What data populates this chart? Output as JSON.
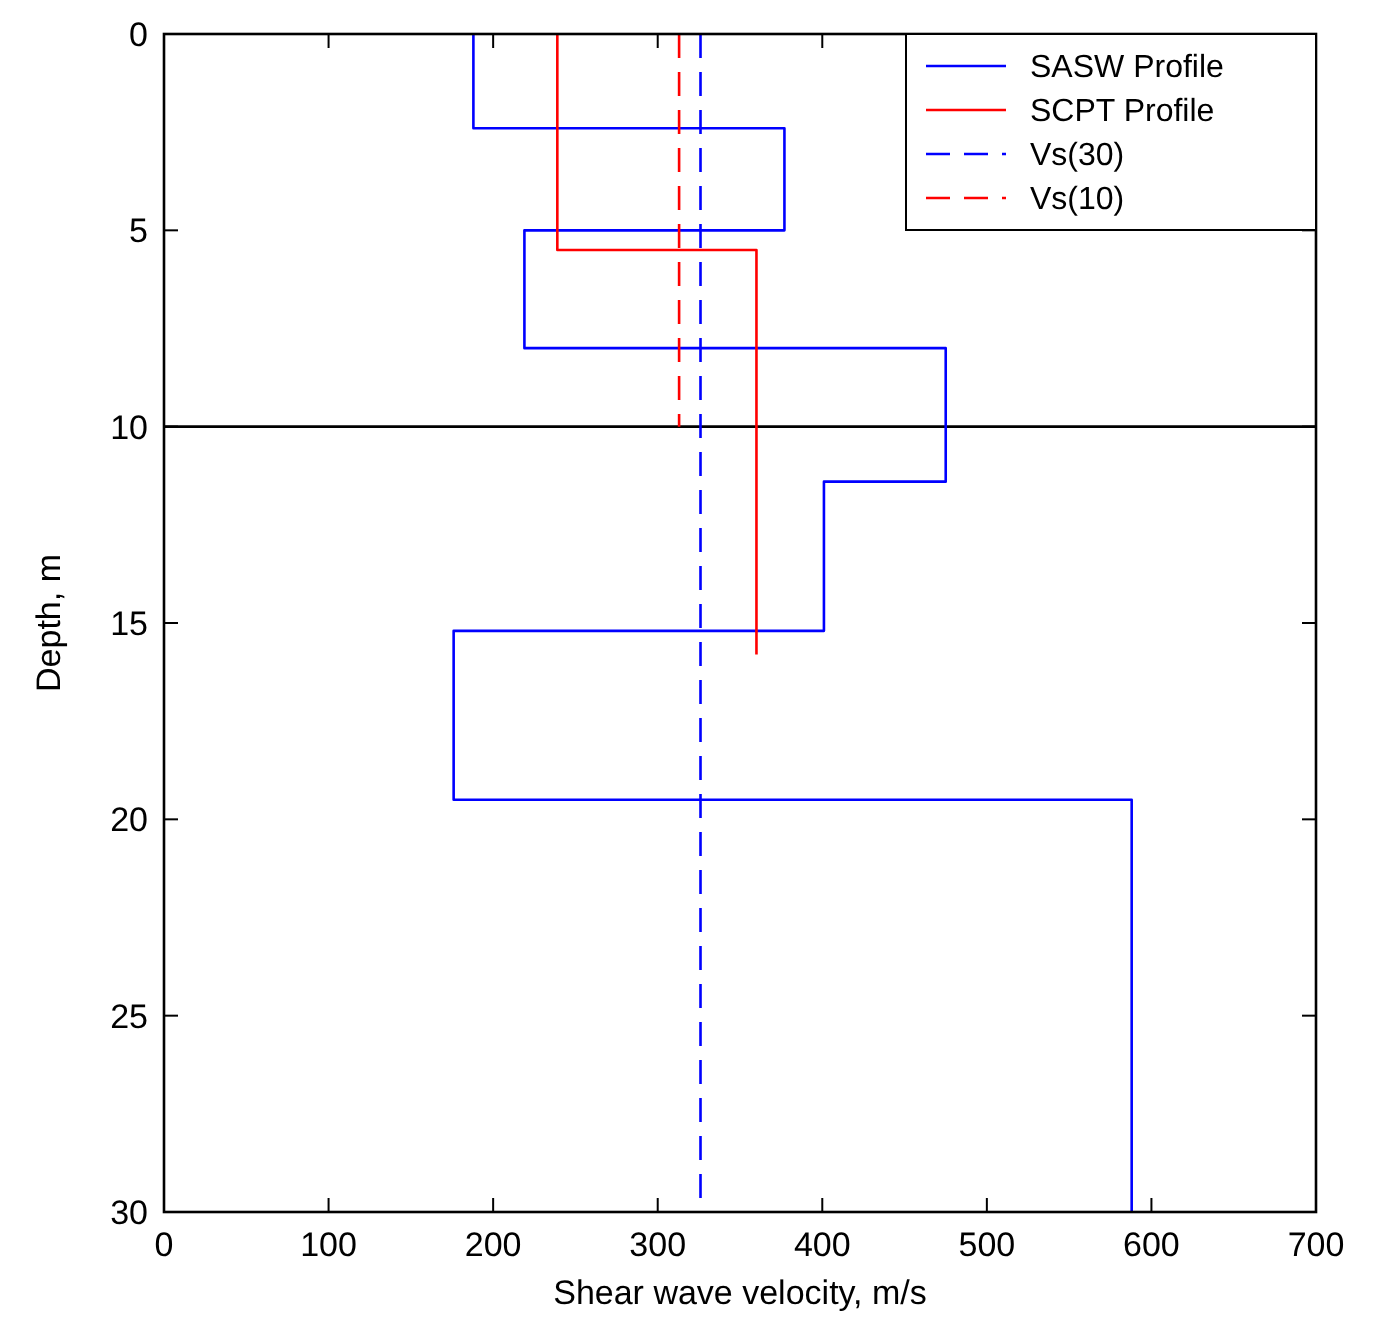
{
  "chart_data": {
    "type": "line",
    "xlabel": "Shear wave velocity, m/s",
    "ylabel": "Depth, m",
    "xlim": [
      0,
      700
    ],
    "ylim": [
      30,
      0
    ],
    "xticks": [
      0,
      100,
      200,
      300,
      400,
      500,
      600,
      700
    ],
    "yticks": [
      0,
      5,
      10,
      15,
      20,
      25,
      30
    ],
    "grid": false,
    "legend": "top right",
    "marker": "none",
    "series": [
      {
        "name": "SASW Profile",
        "color": "#0000ff",
        "line_style": "solid",
        "x": [
          188,
          188,
          377,
          377,
          219,
          219,
          475,
          475,
          401,
          401,
          176,
          176,
          588,
          588
        ],
        "values": [
          0,
          2.4,
          2.4,
          5,
          5,
          8,
          8,
          11.4,
          11.4,
          15.2,
          15.2,
          19.5,
          19.5,
          30
        ]
      },
      {
        "name": "SCPT Profile",
        "color": "#ff0000",
        "line_style": "solid",
        "x": [
          239,
          239,
          360,
          360
        ],
        "values": [
          0,
          5.5,
          5.5,
          15.8
        ]
      },
      {
        "name": "Vs(30)",
        "color": "#0000ff",
        "line_style": "dashed",
        "x": [
          326,
          326
        ],
        "values": [
          0,
          30
        ]
      },
      {
        "name": "Vs(10)",
        "color": "#ff0000",
        "line_style": "dashed",
        "x": [
          313,
          313
        ],
        "values": [
          0,
          10
        ]
      }
    ],
    "ref_lines": [
      {
        "axis": "y",
        "value": 10,
        "color": "#000000"
      }
    ]
  }
}
